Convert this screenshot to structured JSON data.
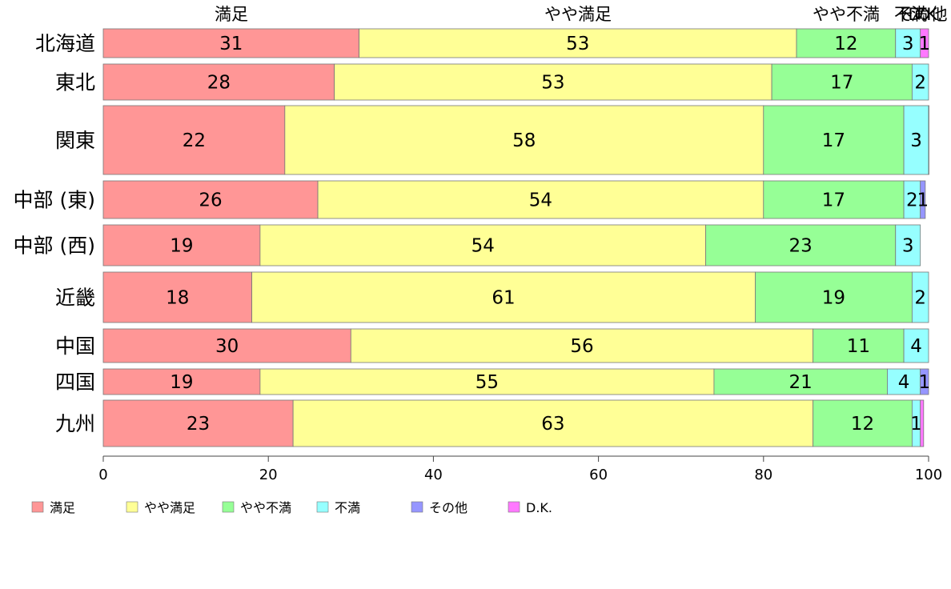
{
  "chart_data": {
    "type": "bar",
    "orientation": "horizontal",
    "stacked": true,
    "percent_scale": true,
    "categories": [
      "北海道",
      "東北",
      "関東",
      "中部 (東)",
      "中部 (西)",
      "近畿",
      "中国",
      "四国",
      "九州"
    ],
    "series": [
      {
        "name": "満足",
        "color": "#ff9696",
        "values": [
          31,
          28,
          22,
          26,
          19,
          18,
          30,
          19,
          23
        ],
        "labels": [
          "31",
          "28",
          "22",
          "26",
          "19",
          "18",
          "30",
          "19",
          "23"
        ]
      },
      {
        "name": "やや満足",
        "color": "#ffff96",
        "values": [
          53,
          53,
          58,
          54,
          54,
          61,
          56,
          55,
          63
        ],
        "labels": [
          "53",
          "53",
          "58",
          "54",
          "54",
          "61",
          "56",
          "55",
          "63"
        ]
      },
      {
        "name": "やや不満",
        "color": "#96ff96",
        "values": [
          12,
          17,
          17,
          17,
          23,
          19,
          11,
          21,
          12
        ],
        "labels": [
          "12",
          "17",
          "17",
          "17",
          "23",
          "19",
          "11",
          "21",
          "12"
        ]
      },
      {
        "name": "不満",
        "color": "#96ffff",
        "values": [
          3,
          2,
          3,
          2,
          3,
          2,
          4,
          4,
          1
        ],
        "labels": [
          "3",
          "2",
          "3",
          "2",
          "3",
          "2",
          "4",
          "4",
          "1"
        ]
      },
      {
        "name": "その他",
        "color": "#9696ff",
        "values": [
          0,
          0,
          0,
          0.6,
          0,
          0,
          0,
          1.2,
          0
        ],
        "labels": [
          "",
          "",
          "",
          "1",
          "",
          "",
          "",
          "1",
          ""
        ]
      },
      {
        "name": "D.K.",
        "color": "#ff78ff",
        "values": [
          1,
          0,
          0.2,
          0,
          0,
          0,
          0,
          0,
          0.4
        ],
        "labels": [
          "1",
          "",
          "",
          "",
          "",
          "",
          "",
          "",
          ""
        ]
      }
    ],
    "top_labels": [
      "満足",
      "やや満足",
      "やや不満",
      "不満",
      "その他",
      "D.K."
    ],
    "x_ticks": [
      0,
      20,
      40,
      60,
      80,
      100
    ],
    "x_tick_labels": [
      "0",
      "20",
      "40",
      "60",
      "80",
      "100"
    ],
    "xlim": [
      0,
      100
    ],
    "grid": false,
    "legend_position": "bottom",
    "title": "",
    "xlabel": "",
    "ylabel": ""
  }
}
